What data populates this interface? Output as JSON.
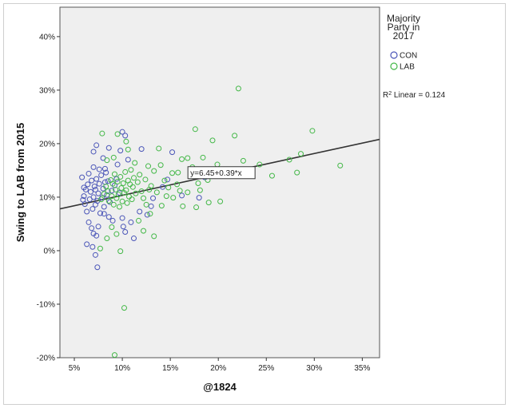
{
  "chart_data": {
    "type": "scatter",
    "xlabel": "@1824",
    "ylabel": "Swing to LAB from 2015",
    "xlim": [
      3.5,
      36.8
    ],
    "ylim": [
      -20,
      45.5
    ],
    "x_ticks": [
      5,
      10,
      15,
      20,
      25,
      30,
      35
    ],
    "x_tick_labels": [
      "5%",
      "10%",
      "15%",
      "20%",
      "25%",
      "30%",
      "35%"
    ],
    "y_ticks": [
      -20,
      -10,
      0,
      10,
      20,
      30,
      40
    ],
    "y_tick_labels": [
      "-20%",
      "-10%",
      "0%",
      "10%",
      "20%",
      "30%",
      "40%"
    ],
    "grid": false,
    "plot_background": "#efefef",
    "legend": {
      "title_lines": [
        "Majority",
        "Party in",
        "2017"
      ],
      "placement": "right",
      "entries": [
        {
          "name": "CON",
          "color": "#4b56b8"
        },
        {
          "name": "LAB",
          "color": "#44b848"
        }
      ]
    },
    "fit_line": {
      "intercept": 6.45,
      "slope": 0.39,
      "label": "y=6.45+0.39*x",
      "color": "#333333"
    },
    "r2_label_prefix": "R",
    "r2_label_sup": "2",
    "r2_label_suffix": " Linear = 0.124",
    "series": [
      {
        "name": "CON",
        "color": "#4b56b8",
        "points": [
          [
            5.8,
            13.7
          ],
          [
            6.0,
            11.8
          ],
          [
            6.0,
            10.2
          ],
          [
            6.1,
            8.7
          ],
          [
            6.3,
            7.3
          ],
          [
            6.4,
            12.4
          ],
          [
            6.5,
            14.4
          ],
          [
            6.6,
            9.6
          ],
          [
            6.7,
            11.0
          ],
          [
            6.8,
            13.1
          ],
          [
            6.9,
            7.8
          ],
          [
            7.0,
            10.0
          ],
          [
            7.0,
            15.6
          ],
          [
            7.1,
            12.0
          ],
          [
            7.2,
            8.6
          ],
          [
            7.2,
            11.4
          ],
          [
            7.3,
            13.4
          ],
          [
            7.4,
            9.3
          ],
          [
            7.5,
            10.7
          ],
          [
            7.6,
            12.5
          ],
          [
            7.7,
            7.0
          ],
          [
            7.8,
            14.1
          ],
          [
            7.9,
            9.9
          ],
          [
            8.0,
            11.6
          ],
          [
            8.1,
            8.2
          ],
          [
            8.2,
            12.8
          ],
          [
            8.4,
            10.4
          ],
          [
            8.5,
            13.0
          ],
          [
            8.7,
            9.1
          ],
          [
            8.9,
            11.2
          ],
          [
            9.2,
            12.2
          ],
          [
            6.5,
            5.3
          ],
          [
            6.8,
            4.2
          ],
          [
            7.0,
            3.2
          ],
          [
            7.3,
            2.8
          ],
          [
            7.5,
            4.5
          ],
          [
            6.3,
            1.2
          ],
          [
            6.9,
            0.7
          ],
          [
            7.2,
            -0.8
          ],
          [
            7.4,
            -3.1
          ],
          [
            7.0,
            18.5
          ],
          [
            7.3,
            19.7
          ],
          [
            8.0,
            17.3
          ],
          [
            8.6,
            19.2
          ],
          [
            8.2,
            15.3
          ],
          [
            9.5,
            16.1
          ],
          [
            9.8,
            18.7
          ],
          [
            10.0,
            22.2
          ],
          [
            10.3,
            21.5
          ],
          [
            10.6,
            17.0
          ],
          [
            10.1,
            4.5
          ],
          [
            10.3,
            3.5
          ],
          [
            10.9,
            5.3
          ],
          [
            11.2,
            2.3
          ],
          [
            12.0,
            19.0
          ],
          [
            13.2,
            9.8
          ],
          [
            14.2,
            11.9
          ],
          [
            14.7,
            13.3
          ],
          [
            15.2,
            18.4
          ],
          [
            16.2,
            10.3
          ],
          [
            18.0,
            9.9
          ],
          [
            18.6,
            13.7
          ],
          [
            8.6,
            6.3
          ],
          [
            9.0,
            5.6
          ],
          [
            10.0,
            6.1
          ],
          [
            11.8,
            7.3
          ],
          [
            12.6,
            6.7
          ],
          [
            13.0,
            8.3
          ],
          [
            5.9,
            9.5
          ],
          [
            6.2,
            11.4
          ],
          [
            7.6,
            15.2
          ],
          [
            8.3,
            14.6
          ],
          [
            9.4,
            13.4
          ],
          [
            9.7,
            10.8
          ],
          [
            8.1,
            6.9
          ]
        ]
      },
      {
        "name": "LAB",
        "color": "#44b848",
        "points": [
          [
            7.8,
            9.6
          ],
          [
            8.1,
            10.6
          ],
          [
            8.3,
            12.0
          ],
          [
            8.5,
            11.1
          ],
          [
            8.6,
            9.3
          ],
          [
            8.8,
            13.2
          ],
          [
            8.9,
            10.2
          ],
          [
            9.0,
            12.5
          ],
          [
            9.1,
            8.6
          ],
          [
            9.2,
            14.3
          ],
          [
            9.3,
            11.4
          ],
          [
            9.4,
            9.8
          ],
          [
            9.5,
            12.9
          ],
          [
            9.6,
            10.5
          ],
          [
            9.7,
            8.2
          ],
          [
            9.8,
            13.8
          ],
          [
            9.9,
            11.7
          ],
          [
            10.0,
            9.2
          ],
          [
            10.1,
            12.6
          ],
          [
            10.2,
            10.8
          ],
          [
            10.3,
            14.7
          ],
          [
            10.4,
            11.3
          ],
          [
            10.5,
            8.9
          ],
          [
            10.6,
            13.1
          ],
          [
            10.7,
            10.1
          ],
          [
            10.8,
            12.4
          ],
          [
            10.9,
            15.1
          ],
          [
            11.0,
            9.6
          ],
          [
            11.1,
            11.9
          ],
          [
            11.2,
            13.6
          ],
          [
            11.4,
            10.7
          ],
          [
            11.6,
            12.8
          ],
          [
            11.8,
            14.2
          ],
          [
            12.0,
            11.1
          ],
          [
            12.2,
            9.8
          ],
          [
            12.4,
            13.3
          ],
          [
            12.7,
            15.8
          ],
          [
            13.0,
            12.1
          ],
          [
            13.3,
            14.9
          ],
          [
            13.6,
            10.9
          ],
          [
            14.0,
            16.0
          ],
          [
            14.4,
            13.1
          ],
          [
            14.8,
            11.8
          ],
          [
            15.2,
            14.5
          ],
          [
            15.7,
            12.4
          ],
          [
            16.2,
            17.1
          ],
          [
            16.8,
            10.9
          ],
          [
            17.3,
            15.6
          ],
          [
            17.9,
            12.6
          ],
          [
            18.4,
            17.4
          ],
          [
            18.9,
            13.2
          ],
          [
            19.4,
            20.6
          ],
          [
            19.9,
            16.1
          ],
          [
            20.4,
            14.4
          ],
          [
            21.0,
            15.0
          ],
          [
            21.7,
            21.5
          ],
          [
            22.1,
            30.3
          ],
          [
            22.6,
            16.8
          ],
          [
            23.3,
            15.2
          ],
          [
            24.3,
            16.1
          ],
          [
            25.6,
            14.0
          ],
          [
            27.4,
            17.0
          ],
          [
            28.2,
            14.6
          ],
          [
            28.6,
            18.1
          ],
          [
            29.8,
            22.4
          ],
          [
            32.7,
            15.9
          ],
          [
            7.9,
            21.9
          ],
          [
            9.5,
            21.8
          ],
          [
            11.7,
            5.6
          ],
          [
            12.2,
            3.7
          ],
          [
            13.3,
            2.7
          ],
          [
            12.9,
            6.9
          ],
          [
            14.1,
            8.4
          ],
          [
            15.3,
            9.9
          ],
          [
            16.3,
            8.3
          ],
          [
            17.7,
            8.1
          ],
          [
            19.0,
            9.0
          ],
          [
            20.2,
            9.2
          ],
          [
            9.8,
            -0.1
          ],
          [
            10.2,
            -10.7
          ],
          [
            9.2,
            -19.5
          ],
          [
            8.4,
            2.3
          ],
          [
            8.9,
            4.4
          ],
          [
            9.4,
            3.1
          ],
          [
            7.7,
            0.4
          ],
          [
            16.8,
            17.3
          ],
          [
            17.6,
            22.7
          ],
          [
            15.8,
            14.6
          ],
          [
            12.5,
            8.6
          ],
          [
            13.8,
            19.1
          ],
          [
            11.3,
            16.4
          ],
          [
            10.6,
            18.9
          ],
          [
            8.4,
            16.9
          ],
          [
            9.1,
            17.4
          ],
          [
            10.4,
            20.4
          ],
          [
            12.8,
            11.4
          ],
          [
            14.6,
            10.2
          ],
          [
            16.0,
            11.2
          ],
          [
            17.2,
            14.1
          ],
          [
            18.1,
            11.3
          ]
        ]
      }
    ]
  }
}
